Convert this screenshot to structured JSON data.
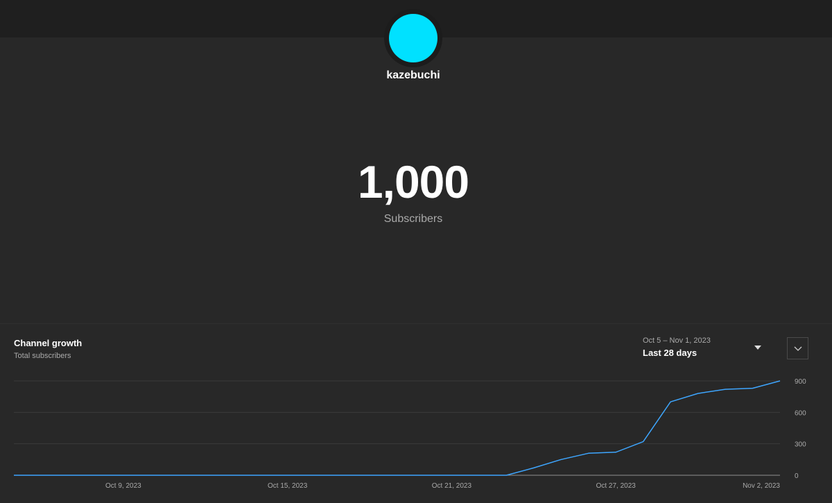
{
  "channel": {
    "name": "kazebuchi",
    "avatar_color": "#00e1ff"
  },
  "subscribers": {
    "count": "1,000",
    "label": "Subscribers"
  },
  "panel": {
    "title": "Channel growth",
    "subtitle": "Total subscribers",
    "date_range": "Oct 5 – Nov 1, 2023",
    "period": "Last 28 days",
    "dropdown_icon": "caret-down-icon",
    "expand_icon": "chevron-down-icon"
  },
  "chart_data": {
    "type": "line",
    "title": "",
    "xlabel": "",
    "ylabel": "",
    "x_tick_labels": [
      "Oct 9, 2023",
      "Oct 15, 2023",
      "Oct 21, 2023",
      "Oct 27, 2023",
      "Nov 2, 2023"
    ],
    "y_ticks": [
      0,
      300,
      600,
      900
    ],
    "ylim": [
      0,
      900
    ],
    "xlim": [
      "2023-10-05",
      "2023-11-02"
    ],
    "grid": true,
    "line_color": "#3ea6ff",
    "series": [
      {
        "x": [
          "2023-10-05",
          "2023-10-06",
          "2023-10-07",
          "2023-10-08",
          "2023-10-09",
          "2023-10-10",
          "2023-10-11",
          "2023-10-12",
          "2023-10-13",
          "2023-10-14",
          "2023-10-15",
          "2023-10-16",
          "2023-10-17",
          "2023-10-18",
          "2023-10-19",
          "2023-10-20",
          "2023-10-21",
          "2023-10-22",
          "2023-10-23",
          "2023-10-24",
          "2023-10-25",
          "2023-10-26",
          "2023-10-27",
          "2023-10-28",
          "2023-10-29",
          "2023-10-30",
          "2023-10-31",
          "2023-11-01",
          "2023-11-02"
        ],
        "values": [
          0,
          0,
          0,
          0,
          0,
          0,
          0,
          0,
          0,
          0,
          0,
          0,
          0,
          0,
          0,
          0,
          0,
          0,
          0,
          70,
          150,
          210,
          220,
          320,
          700,
          780,
          820,
          830,
          900
        ]
      }
    ]
  }
}
